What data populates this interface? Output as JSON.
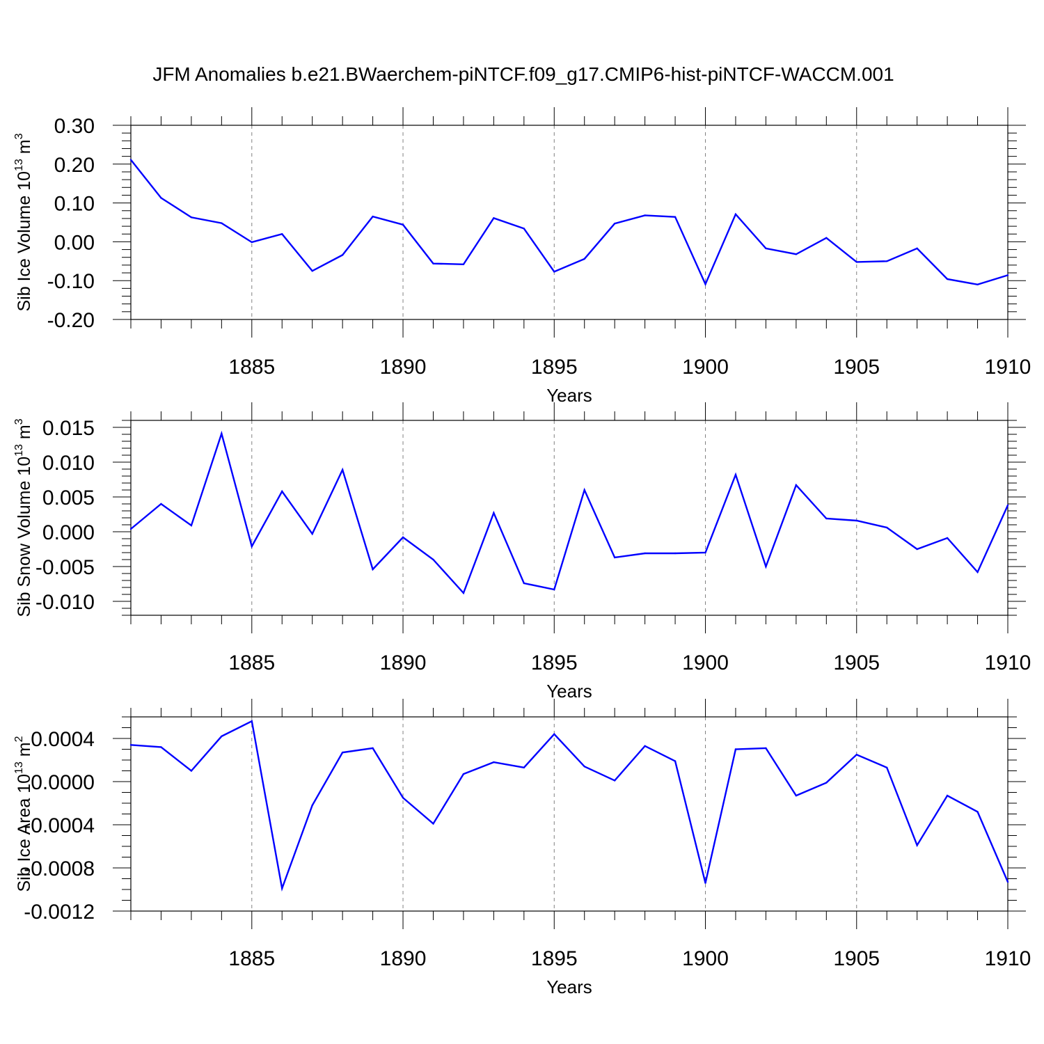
{
  "title": "JFM Anomalies b.e21.BWaerchem-piNTCF.f09_g17.CMIP6-hist-piNTCF-WACCM.001",
  "colors": {
    "line": "#0000ff",
    "axis": "#000000",
    "grid": "#808080"
  },
  "chart_data": [
    {
      "type": "line",
      "ylabel": {
        "base": "Sib Ice Volume 10",
        "exp": "13",
        "unit": " m",
        "unit_exp": "3"
      },
      "xlabel": "Years",
      "xlim": [
        1881,
        1910
      ],
      "xticks": [
        1885,
        1890,
        1895,
        1900,
        1905,
        1910
      ],
      "ylim": [
        -0.2,
        0.3
      ],
      "yticks": [
        -0.2,
        -0.1,
        0.0,
        0.1,
        0.2,
        0.3
      ],
      "ytick_labels": [
        "-0.20",
        "-0.10",
        "0.00",
        "0.10",
        "0.20",
        "0.30"
      ],
      "ytick_minor": 0.02,
      "grid": "vertical dashed at major x ticks",
      "x": [
        1881,
        1882,
        1883,
        1884,
        1885,
        1886,
        1887,
        1888,
        1889,
        1890,
        1891,
        1892,
        1893,
        1894,
        1895,
        1896,
        1897,
        1898,
        1899,
        1900,
        1901,
        1902,
        1903,
        1904,
        1905,
        1906,
        1907,
        1908,
        1909,
        1910
      ],
      "values": [
        0.211,
        0.113,
        0.063,
        0.048,
        -0.001,
        0.02,
        -0.075,
        -0.034,
        0.065,
        0.044,
        -0.056,
        -0.058,
        0.061,
        0.034,
        -0.077,
        -0.044,
        0.047,
        0.068,
        0.064,
        -0.109,
        0.071,
        -0.017,
        -0.032,
        0.01,
        -0.052,
        -0.05,
        -0.017,
        -0.096,
        -0.11,
        -0.086
      ]
    },
    {
      "type": "line",
      "ylabel": {
        "base": "Sib Snow Volume 10",
        "exp": "13",
        "unit": " m",
        "unit_exp": "3"
      },
      "xlabel": "Years",
      "xlim": [
        1881,
        1910
      ],
      "xticks": [
        1885,
        1890,
        1895,
        1900,
        1905,
        1910
      ],
      "ylim": [
        -0.012,
        0.016
      ],
      "yticks": [
        -0.01,
        -0.005,
        0.0,
        0.005,
        0.01,
        0.015
      ],
      "ytick_labels": [
        "-0.010",
        "-0.005",
        "0.000",
        "0.005",
        "0.010",
        "0.015"
      ],
      "ytick_minor": 0.001,
      "grid": "vertical dashed at major x ticks",
      "x": [
        1881,
        1882,
        1883,
        1884,
        1885,
        1886,
        1887,
        1888,
        1889,
        1890,
        1891,
        1892,
        1893,
        1894,
        1895,
        1896,
        1897,
        1898,
        1899,
        1900,
        1901,
        1902,
        1903,
        1904,
        1905,
        1906,
        1907,
        1908,
        1909,
        1910
      ],
      "values": [
        0.0004,
        0.004,
        0.0009,
        0.0141,
        -0.0021,
        0.0058,
        -0.0003,
        0.0089,
        -0.0054,
        -0.0008,
        -0.004,
        -0.0088,
        0.0027,
        -0.0074,
        -0.0083,
        0.006,
        -0.0037,
        -0.0031,
        -0.0031,
        -0.003,
        0.0082,
        -0.005,
        0.0067,
        0.0019,
        0.0016,
        0.0006,
        -0.0025,
        -0.0009,
        -0.0058,
        0.0038
      ]
    },
    {
      "type": "line",
      "ylabel": {
        "base": "Sib Ice Area 10",
        "exp": "13",
        "unit": " m",
        "unit_exp": "2"
      },
      "xlabel": "Years",
      "xlim": [
        1881,
        1910
      ],
      "xticks": [
        1885,
        1890,
        1895,
        1900,
        1905,
        1910
      ],
      "ylim": [
        -0.0012,
        0.0006
      ],
      "yticks": [
        -0.0012,
        -0.0008,
        -0.0004,
        0.0,
        0.0004
      ],
      "ytick_labels": [
        "-0.0012",
        "-0.0008",
        "-0.0004",
        "0.0000",
        "0.0004"
      ],
      "ytick_minor": 0.0001,
      "grid": "vertical dashed at major x ticks",
      "x": [
        1881,
        1882,
        1883,
        1884,
        1885,
        1886,
        1887,
        1888,
        1889,
        1890,
        1891,
        1892,
        1893,
        1894,
        1895,
        1896,
        1897,
        1898,
        1899,
        1900,
        1901,
        1902,
        1903,
        1904,
        1905,
        1906,
        1907,
        1908,
        1909,
        1910
      ],
      "values": [
        0.00034,
        0.00032,
        0.0001,
        0.00042,
        0.00056,
        -0.00099,
        -0.00022,
        0.00027,
        0.00031,
        -0.00015,
        -0.00039,
        7e-05,
        0.00018,
        0.00013,
        0.00044,
        0.00014,
        1e-05,
        0.00033,
        0.00019,
        -0.00094,
        0.0003,
        0.00031,
        -0.00013,
        -1e-05,
        0.00025,
        0.00013,
        -0.00059,
        -0.00013,
        -0.00028,
        -0.00093
      ]
    }
  ]
}
